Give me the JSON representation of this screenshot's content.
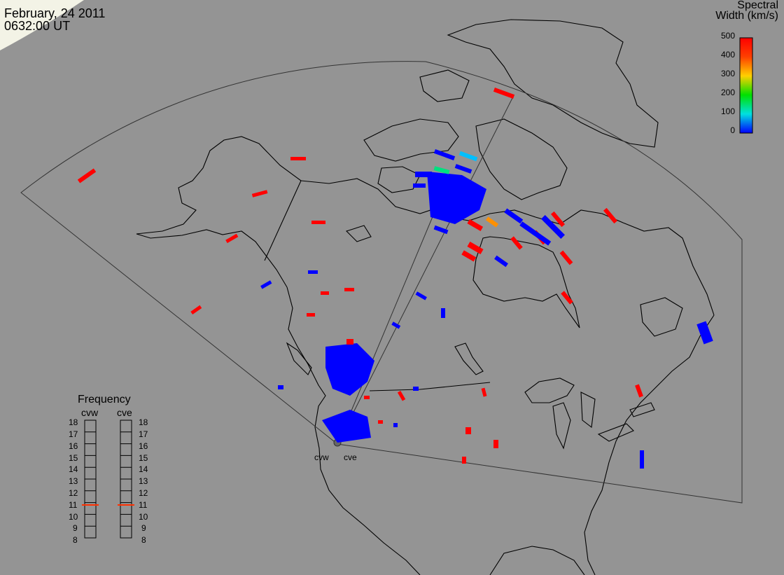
{
  "header": {
    "date": "February, 24 2011",
    "time": "0632:00 UT"
  },
  "colorbar": {
    "title_line1": "Spectral",
    "title_line2": "Width (km/s)",
    "ticks": [
      "500",
      "400",
      "300",
      "200",
      "100",
      "0"
    ],
    "colors": [
      "#ff0000",
      "#ff8000",
      "#ffff00",
      "#00e000",
      "#00e0e0",
      "#0000ff"
    ]
  },
  "frequency": {
    "title": "Frequency",
    "radars": [
      {
        "name": "cvw",
        "current_mhz": 10.8
      },
      {
        "name": "cve",
        "current_mhz": 10.8
      }
    ],
    "scale": [
      "18",
      "17",
      "16",
      "15",
      "14",
      "13",
      "12",
      "11",
      "10",
      "9",
      "8"
    ]
  },
  "sites": [
    "cvw",
    "cve"
  ],
  "colors": {
    "background": "#949494",
    "land_outline": "#000000",
    "fov_outline": "#303030",
    "freq_marker": "#ff3000"
  }
}
